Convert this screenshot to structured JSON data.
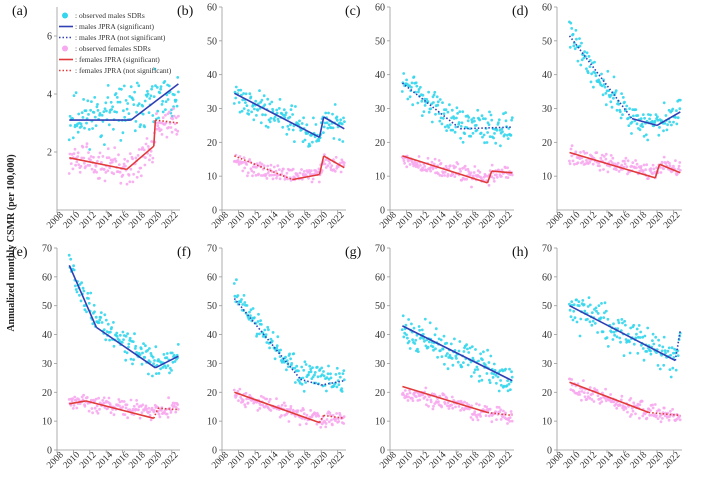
{
  "figure": {
    "ylabel": "Annualized monthly CSMR (per 100,000)",
    "legend": {
      "males_observed": ": observed males SDRs",
      "males_sig": ": males JPRA (significant)",
      "males_nonsig": ": males JPRA (not significant)",
      "females_observed": ": observed females SDRs",
      "females_sig": ": females JPRA (significant)",
      "females_nonsig": ": females JPRA (not significant)"
    },
    "colors": {
      "males_points": "#33d6ec",
      "females_points": "#f7a8ee",
      "males_line": "#2f3fb5",
      "females_line": "#e23a3a",
      "axis": "#999999",
      "text": "#333333"
    }
  },
  "chart_data": [
    {
      "type": "scatter",
      "panel": "(a)",
      "xlim": [
        2008,
        2023
      ],
      "ylim": [
        0,
        7
      ],
      "xticks": [
        "2008",
        "2010",
        "2012",
        "2014",
        "2016",
        "2018",
        "2020",
        "2022"
      ],
      "yticks": [
        "2",
        "4",
        "6"
      ],
      "series": [
        {
          "name": "males JPRA",
          "color": "#2f3fb5",
          "breaks": [
            [
              2009.5,
              3.1,
              0
            ],
            [
              2017,
              3.1,
              1
            ],
            [
              2022.8,
              4.35,
              1
            ]
          ]
        },
        {
          "name": "females JPRA",
          "color": "#e23a3a",
          "breaks": [
            [
              2009.5,
              1.8,
              1
            ],
            [
              2016.5,
              1.4,
              1
            ],
            [
              2019.8,
              2.2,
              1
            ],
            [
              2020,
              3.1,
              1
            ],
            [
              2022.8,
              3.0,
              0
            ]
          ]
        }
      ],
      "scatter": {
        "males": {
          "trend": [
            [
              2009.5,
              3.1
            ],
            [
              2022.8,
              3.8
            ]
          ],
          "spread": 0.85,
          "seed": 11
        },
        "females": {
          "trend": [
            [
              2009.5,
              1.8
            ],
            [
              2016.5,
              1.4
            ],
            [
              2019.8,
              2.1
            ],
            [
              2020,
              3.0
            ],
            [
              2022.8,
              3.0
            ]
          ],
          "spread": 0.55,
          "seed": 12
        }
      }
    },
    {
      "type": "scatter",
      "panel": "(b)",
      "xlim": [
        2008,
        2023
      ],
      "ylim": [
        0,
        60
      ],
      "xticks": [
        "2008",
        "2010",
        "2012",
        "2014",
        "2016",
        "2018",
        "2020",
        "2022"
      ],
      "yticks": [
        "0",
        "10",
        "20",
        "30",
        "40",
        "50",
        "60"
      ],
      "series": [
        {
          "name": "males JPRA",
          "color": "#2f3fb5",
          "breaks": [
            [
              2009.5,
              34.5,
              1
            ],
            [
              2019.8,
              21.5,
              1
            ],
            [
              2020.3,
              27.5,
              1
            ],
            [
              2022.8,
              24,
              1
            ]
          ]
        },
        {
          "name": "females JPRA",
          "color": "#e23a3a",
          "breaks": [
            [
              2009.5,
              16,
              1
            ],
            [
              2016.5,
              9,
              0
            ],
            [
              2019.8,
              10.5,
              1
            ],
            [
              2020.3,
              16,
              1
            ],
            [
              2022.8,
              12.5,
              1
            ]
          ]
        }
      ],
      "scatter": {
        "males": {
          "trend": [
            [
              2009.5,
              34.5
            ],
            [
              2019.8,
              21.5
            ],
            [
              2020.3,
              27.5
            ],
            [
              2022.8,
              24
            ]
          ],
          "spread": 4.5,
          "seed": 21
        },
        "females": {
          "trend": [
            [
              2009.5,
              14
            ],
            [
              2016.5,
              10
            ],
            [
              2019.8,
              10.5
            ],
            [
              2020.3,
              14
            ],
            [
              2022.8,
              12.5
            ]
          ],
          "spread": 2.5,
          "seed": 22
        }
      }
    },
    {
      "type": "scatter",
      "panel": "(c)",
      "xlim": [
        2008,
        2023
      ],
      "ylim": [
        0,
        60
      ],
      "xticks": [
        "2008",
        "2010",
        "2012",
        "2014",
        "2016",
        "2018",
        "2020",
        "2022"
      ],
      "yticks": [
        "0",
        "10",
        "20",
        "30",
        "40",
        "50",
        "60"
      ],
      "series": [
        {
          "name": "males JPRA",
          "color": "#2f3fb5",
          "breaks": [
            [
              2009.5,
              37.5,
              1
            ],
            [
              2016.5,
              24,
              0
            ],
            [
              2022.8,
              24.5,
              0
            ]
          ]
        },
        {
          "name": "females JPRA",
          "color": "#e23a3a",
          "breaks": [
            [
              2009.5,
              16,
              1
            ],
            [
              2019.8,
              8,
              1
            ],
            [
              2020.3,
              11.5,
              1
            ],
            [
              2022.8,
              11,
              1
            ]
          ]
        }
      ],
      "scatter": {
        "males": {
          "trend": [
            [
              2009.5,
              37.5
            ],
            [
              2016.5,
              25
            ],
            [
              2022.8,
              24.5
            ]
          ],
          "spread": 4.5,
          "seed": 31
        },
        "females": {
          "trend": [
            [
              2009.5,
              15
            ],
            [
              2019.8,
              9
            ],
            [
              2020.3,
              11
            ],
            [
              2022.8,
              11
            ]
          ],
          "spread": 2.5,
          "seed": 32
        }
      }
    },
    {
      "type": "scatter",
      "panel": "(d)",
      "xlim": [
        2008,
        2023
      ],
      "ylim": [
        0,
        60
      ],
      "xticks": [
        "2008",
        "2010",
        "2012",
        "2014",
        "2016",
        "2018",
        "2020",
        "2022"
      ],
      "yticks": [
        "10",
        "20",
        "30",
        "40",
        "50",
        "60"
      ],
      "series": [
        {
          "name": "males JPRA",
          "color": "#2f3fb5",
          "breaks": [
            [
              2009.5,
              51.5,
              1
            ],
            [
              2017,
              27,
              0
            ],
            [
              2020,
              25,
              1
            ],
            [
              2022.8,
              29,
              1
            ]
          ]
        },
        {
          "name": "females JPRA",
          "color": "#e23a3a",
          "breaks": [
            [
              2009.5,
              17,
              1
            ],
            [
              2019.8,
              9.5,
              1
            ],
            [
              2020.3,
              13.5,
              1
            ],
            [
              2022.8,
              11,
              1
            ]
          ]
        }
      ],
      "scatter": {
        "males": {
          "trend": [
            [
              2009.5,
              53
            ],
            [
              2012.5,
              40
            ],
            [
              2017,
              27
            ],
            [
              2020,
              25
            ],
            [
              2022.8,
              29
            ]
          ],
          "spread": 4.5,
          "seed": 41
        },
        "females": {
          "trend": [
            [
              2009.5,
              16
            ],
            [
              2019.8,
              11
            ],
            [
              2020.3,
              13
            ],
            [
              2022.8,
              12
            ]
          ],
          "spread": 2.5,
          "seed": 42
        }
      }
    },
    {
      "type": "scatter",
      "panel": "(e)",
      "xlim": [
        2008,
        2023
      ],
      "ylim": [
        0,
        70
      ],
      "xticks": [
        "2008",
        "2010",
        "2012",
        "2014",
        "2016",
        "2018",
        "2020",
        "2022"
      ],
      "yticks": [
        "0",
        "10",
        "20",
        "30",
        "40",
        "50",
        "60",
        "70"
      ],
      "series": [
        {
          "name": "males JPRA",
          "color": "#2f3fb5",
          "breaks": [
            [
              2009.5,
              64,
              1
            ],
            [
              2012.8,
              42.5,
              1
            ],
            [
              2020,
              28.5,
              1
            ],
            [
              2022.8,
              32.5,
              1
            ]
          ]
        },
        {
          "name": "females JPRA",
          "color": "#e23a3a",
          "breaks": [
            [
              2009.5,
              16,
              1
            ],
            [
              2011.5,
              17,
              1
            ],
            [
              2019.8,
              11,
              1
            ],
            [
              2020.3,
              14.5,
              0
            ],
            [
              2022.8,
              14,
              0
            ]
          ]
        }
      ],
      "scatter": {
        "males": {
          "trend": [
            [
              2009.5,
              64
            ],
            [
              2012.8,
              45
            ],
            [
              2020,
              30
            ],
            [
              2022.8,
              32
            ]
          ],
          "spread": 5,
          "seed": 51
        },
        "females": {
          "trend": [
            [
              2009.5,
              16
            ],
            [
              2011.5,
              17
            ],
            [
              2019.8,
              13
            ],
            [
              2020.3,
              14
            ],
            [
              2022.8,
              14
            ]
          ],
          "spread": 3,
          "seed": 52
        }
      }
    },
    {
      "type": "scatter",
      "panel": "(f)",
      "xlim": [
        2008,
        2023
      ],
      "ylim": [
        0,
        70
      ],
      "xticks": [
        "2008",
        "2010",
        "2012",
        "2014",
        "2016",
        "2018",
        "2020",
        "2022"
      ],
      "yticks": [
        "0",
        "10",
        "20",
        "30",
        "40",
        "50",
        "60",
        "70"
      ],
      "series": [
        {
          "name": "males JPRA",
          "color": "#2f3fb5",
          "breaks": [
            [
              2009.5,
              52.5,
              1
            ],
            [
              2017.5,
              24.5,
              0
            ],
            [
              2020,
              22.5,
              0
            ],
            [
              2022.8,
              24,
              0
            ]
          ]
        },
        {
          "name": "females JPRA",
          "color": "#e23a3a",
          "breaks": [
            [
              2009.5,
              20,
              1
            ],
            [
              2019.8,
              9.5,
              1
            ],
            [
              2020.3,
              12,
              0
            ],
            [
              2022.8,
              11,
              0
            ]
          ]
        }
      ],
      "scatter": {
        "males": {
          "trend": [
            [
              2009.5,
              54
            ],
            [
              2013,
              40
            ],
            [
              2017.5,
              26
            ],
            [
              2022.8,
              24
            ]
          ],
          "spread": 4.5,
          "seed": 61
        },
        "females": {
          "trend": [
            [
              2009.5,
              19
            ],
            [
              2019.8,
              10.5
            ],
            [
              2022.8,
              11
            ]
          ],
          "spread": 2.8,
          "seed": 62
        }
      }
    },
    {
      "type": "scatter",
      "panel": "(g)",
      "xlim": [
        2008,
        2023
      ],
      "ylim": [
        0,
        70
      ],
      "xticks": [
        "2008",
        "2010",
        "2012",
        "2014",
        "2016",
        "2018",
        "2020",
        "2022"
      ],
      "yticks": [
        "0",
        "10",
        "20",
        "30",
        "40",
        "50",
        "60",
        "70"
      ],
      "series": [
        {
          "name": "males JPRA",
          "color": "#2f3fb5",
          "breaks": [
            [
              2009.5,
              43,
              1
            ],
            [
              2022.8,
              24,
              1
            ]
          ]
        },
        {
          "name": "females JPRA",
          "color": "#e23a3a",
          "breaks": [
            [
              2009.5,
              22,
              1
            ],
            [
              2019.8,
              13,
              1
            ],
            [
              2022.8,
              12,
              0
            ]
          ]
        }
      ],
      "scatter": {
        "males": {
          "trend": [
            [
              2009.5,
              42
            ],
            [
              2022.8,
              24
            ]
          ],
          "spread": 5.5,
          "seed": 71
        },
        "females": {
          "trend": [
            [
              2009.5,
              20
            ],
            [
              2019.8,
              13
            ],
            [
              2022.8,
              12
            ]
          ],
          "spread": 3,
          "seed": 72
        }
      }
    },
    {
      "type": "scatter",
      "panel": "(h)",
      "xlim": [
        2008,
        2023
      ],
      "ylim": [
        0,
        70
      ],
      "xticks": [
        "2008",
        "2010",
        "2012",
        "2014",
        "2016",
        "2018",
        "2020",
        "2022"
      ],
      "yticks": [
        "0",
        "10",
        "20",
        "30",
        "40",
        "50",
        "60",
        "70"
      ],
      "series": [
        {
          "name": "males JPRA",
          "color": "#2f3fb5",
          "breaks": [
            [
              2009.5,
              50,
              1
            ],
            [
              2022.2,
              31,
              1
            ],
            [
              2022.8,
              41.5,
              0
            ]
          ]
        },
        {
          "name": "females JPRA",
          "color": "#e23a3a",
          "breaks": [
            [
              2009.5,
              23.5,
              1
            ],
            [
              2019,
              13,
              1
            ],
            [
              2022.8,
              12,
              0
            ]
          ]
        }
      ],
      "scatter": {
        "males": {
          "trend": [
            [
              2009.5,
              50
            ],
            [
              2022.2,
              32
            ],
            [
              2022.8,
              38
            ]
          ],
          "spread": 7,
          "seed": 81
        },
        "females": {
          "trend": [
            [
              2009.5,
              22
            ],
            [
              2019,
              13
            ],
            [
              2022.8,
              12
            ]
          ],
          "spread": 3,
          "seed": 82
        }
      }
    }
  ]
}
